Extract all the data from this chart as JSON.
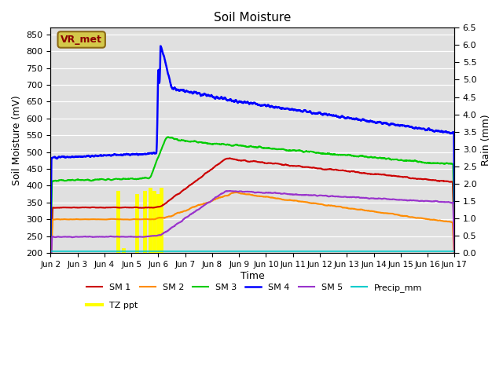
{
  "title": "Soil Moisture",
  "ylabel_left": "Soil Moisture (mV)",
  "ylabel_right": "Rain (mm)",
  "xlabel": "Time",
  "xlim_days": [
    0,
    15
  ],
  "ylim_left": [
    200,
    870
  ],
  "ylim_right": [
    0.0,
    6.5
  ],
  "yticks_left": [
    200,
    250,
    300,
    350,
    400,
    450,
    500,
    550,
    600,
    650,
    700,
    750,
    800,
    850
  ],
  "yticks_right": [
    0.0,
    0.5,
    1.0,
    1.5,
    2.0,
    2.5,
    3.0,
    3.5,
    4.0,
    4.5,
    5.0,
    5.5,
    6.0,
    6.5
  ],
  "xtick_labels": [
    "Jun 2",
    "Jun 3",
    "Jun 4",
    "Jun 5",
    "Jun 6",
    "Jun 7",
    "Jun 8",
    "Jun 9",
    "Jun 10",
    "Jun 11",
    "Jun 12",
    "Jun 13",
    "Jun 14",
    "Jun 15",
    "Jun 16",
    "Jun 17"
  ],
  "bg_color": "#e0e0e0",
  "vr_met_label": "VR_met",
  "vr_met_box_color": "#d4c84a",
  "vr_met_text_color": "#8b0000",
  "line_colors": {
    "SM1": "#cc0000",
    "SM2": "#ff8c00",
    "SM3": "#00cc00",
    "SM4": "#0000ff",
    "SM5": "#9933cc",
    "Precip_mm": "#00cccc",
    "TZ_ppt": "#ffff00"
  },
  "spike_day": 4.0,
  "tz_ppt_times": [
    2.5,
    2.7,
    3.2,
    3.5,
    3.7,
    3.85,
    4.0,
    4.1
  ],
  "tz_ppt_top_vals": [
    380,
    210,
    370,
    380,
    390,
    380,
    370,
    390
  ]
}
